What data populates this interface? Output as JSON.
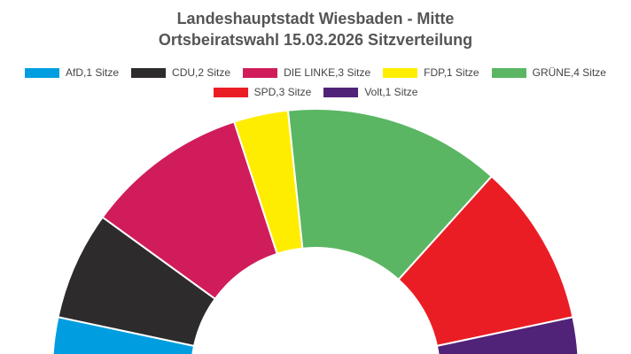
{
  "title_line1": "Landeshauptstadt Wiesbaden - Mitte",
  "title_line2": "Ortsbeiratswahl 15.03.2026 Sitzverteilung",
  "chart_data": {
    "type": "pie",
    "subtype": "parliament-semicircle",
    "legend_position": "top",
    "total_seats": 15,
    "series": [
      {
        "name": "AfD,1 Sitze",
        "party": "AfD",
        "value": 1,
        "color": "#009ee0"
      },
      {
        "name": "CDU,2 Sitze",
        "party": "CDU",
        "value": 2,
        "color": "#2d2b2c"
      },
      {
        "name": "DIE LINKE,3 Sitze",
        "party": "DIE LINKE",
        "value": 3,
        "color": "#d01c5b"
      },
      {
        "name": "FDP,1 Sitze",
        "party": "FDP",
        "value": 1,
        "color": "#ffed00"
      },
      {
        "name": "GRÜNE,4 Sitze",
        "party": "GRÜNE",
        "value": 4,
        "color": "#5ab663"
      },
      {
        "name": "SPD,3 Sitze",
        "party": "SPD",
        "value": 3,
        "color": "#eb1d24"
      },
      {
        "name": "Volt,1 Sitze",
        "party": "Volt",
        "value": 1,
        "color": "#502379"
      }
    ]
  }
}
